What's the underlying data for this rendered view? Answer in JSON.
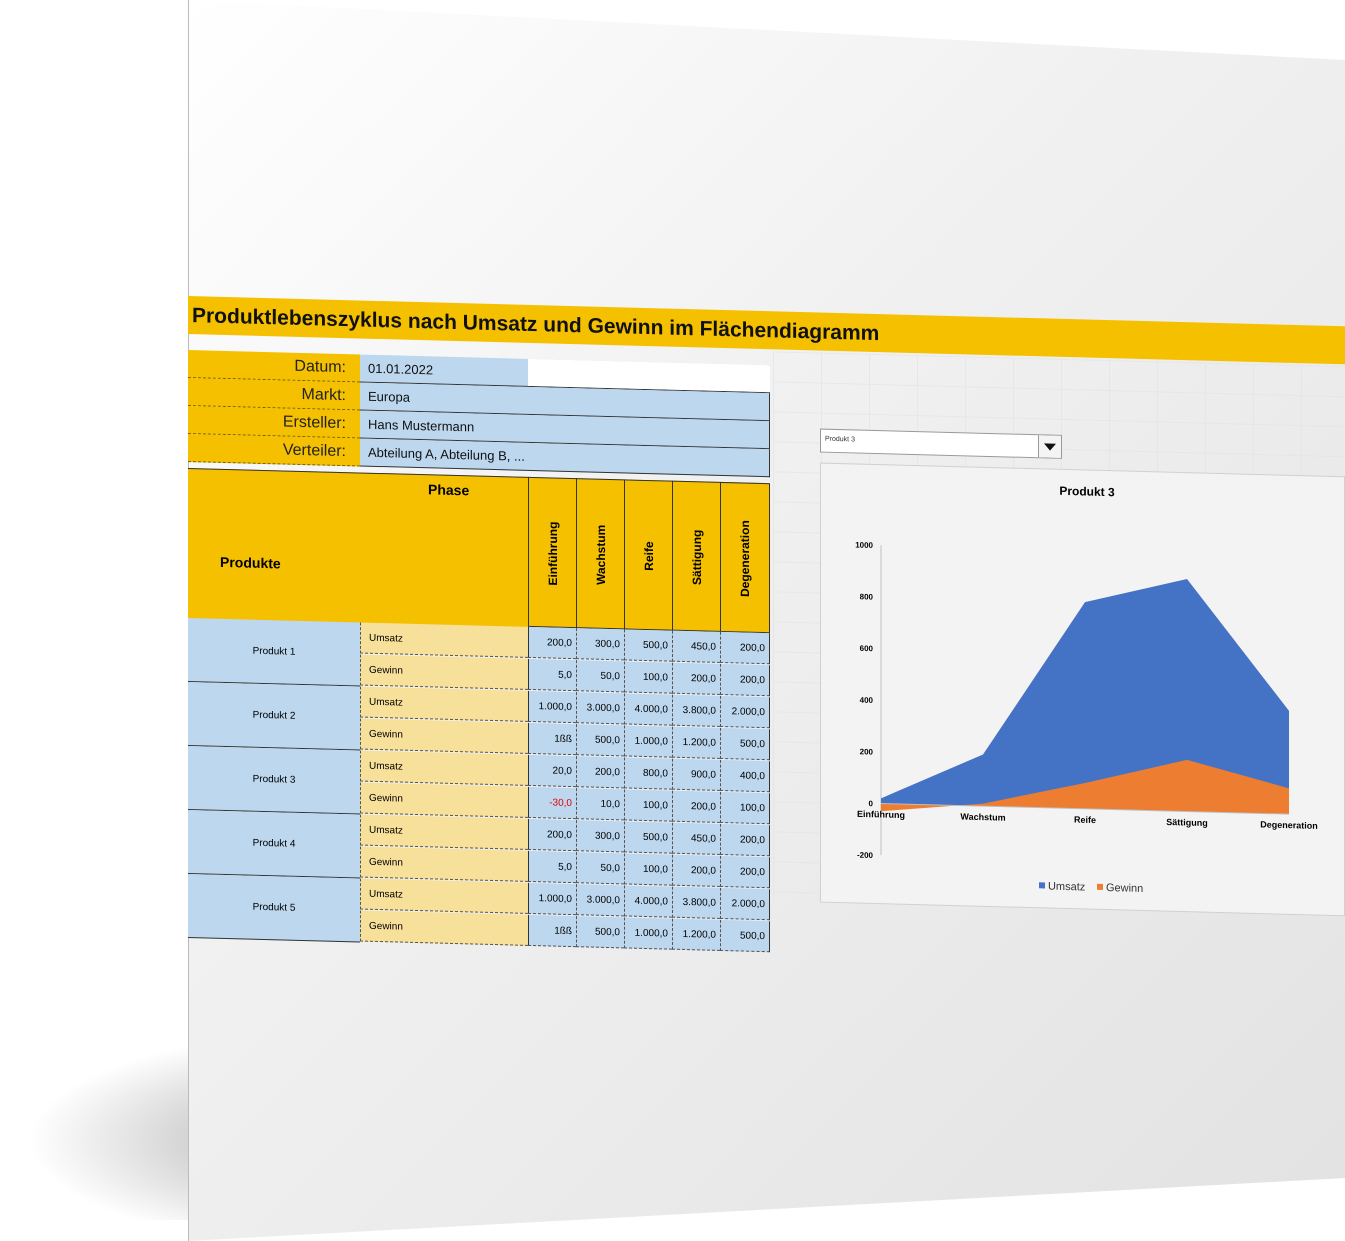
{
  "title": "Produktlebenszyklus nach Umsatz und Gewinn im Flächendiagramm",
  "info": [
    {
      "label": "Datum:",
      "value": "01.01.2022"
    },
    {
      "label": "Markt:",
      "value": "Europa"
    },
    {
      "label": "Ersteller:",
      "value": "Hans Mustermann"
    },
    {
      "label": "Verteiler:",
      "value": "Abteilung A, Abteilung B, ..."
    }
  ],
  "table": {
    "phase_header": "Phase",
    "products_header": "Produkte",
    "phases": [
      "Einführung",
      "Wachstum",
      "Reife",
      "Sättigung",
      "Degeneration"
    ],
    "products": [
      {
        "name": "Produkt 1",
        "rows": [
          {
            "metric": "Umsatz",
            "values": [
              "200,0",
              "300,0",
              "500,0",
              "450,0",
              "200,0"
            ]
          },
          {
            "metric": "Gewinn",
            "values": [
              "5,0",
              "50,0",
              "100,0",
              "200,0",
              "200,0"
            ]
          }
        ]
      },
      {
        "name": "Produkt 2",
        "rows": [
          {
            "metric": "Umsatz",
            "values": [
              "1.000,0",
              "3.000,0",
              "4.000,0",
              "3.800,0",
              "2.000,0"
            ]
          },
          {
            "metric": "Gewinn",
            "values": [
              "1ßß",
              "500,0",
              "1.000,0",
              "1.200,0",
              "500,0"
            ]
          }
        ]
      },
      {
        "name": "Produkt 3",
        "rows": [
          {
            "metric": "Umsatz",
            "values": [
              "20,0",
              "200,0",
              "800,0",
              "900,0",
              "400,0"
            ]
          },
          {
            "metric": "Gewinn",
            "values": [
              "-30,0",
              "10,0",
              "100,0",
              "200,0",
              "100,0"
            ]
          }
        ]
      },
      {
        "name": "Produkt 4",
        "rows": [
          {
            "metric": "Umsatz",
            "values": [
              "200,0",
              "300,0",
              "500,0",
              "450,0",
              "200,0"
            ]
          },
          {
            "metric": "Gewinn",
            "values": [
              "5,0",
              "50,0",
              "100,0",
              "200,0",
              "200,0"
            ]
          }
        ]
      },
      {
        "name": "Produkt 5",
        "rows": [
          {
            "metric": "Umsatz",
            "values": [
              "1.000,0",
              "3.000,0",
              "4.000,0",
              "3.800,0",
              "2.000,0"
            ]
          },
          {
            "metric": "Gewinn",
            "values": [
              "1ßß",
              "500,0",
              "1.000,0",
              "1.200,0",
              "500,0"
            ]
          }
        ]
      }
    ]
  },
  "selector": {
    "selected": "Produkt 3"
  },
  "colors": {
    "accent": "#f5c000",
    "cell_blue": "#bdd7ee",
    "cell_yellow": "#f6e09a",
    "negative": "#e00000"
  },
  "chart_data": {
    "type": "area",
    "title": "Produkt 3",
    "categories": [
      "Einführung",
      "Wachstum",
      "Reife",
      "Sättigung",
      "Degeneration"
    ],
    "series": [
      {
        "name": "Umsatz",
        "values": [
          20,
          200,
          800,
          900,
          400
        ],
        "color": "#4472c4"
      },
      {
        "name": "Gewinn",
        "values": [
          -30,
          10,
          100,
          200,
          100
        ],
        "color": "#ed7d31"
      }
    ],
    "ylim": [
      -200,
      1000
    ],
    "yticks": [
      -200,
      0,
      200,
      400,
      600,
      800,
      1000
    ],
    "legend": "bottom",
    "grid": false
  }
}
